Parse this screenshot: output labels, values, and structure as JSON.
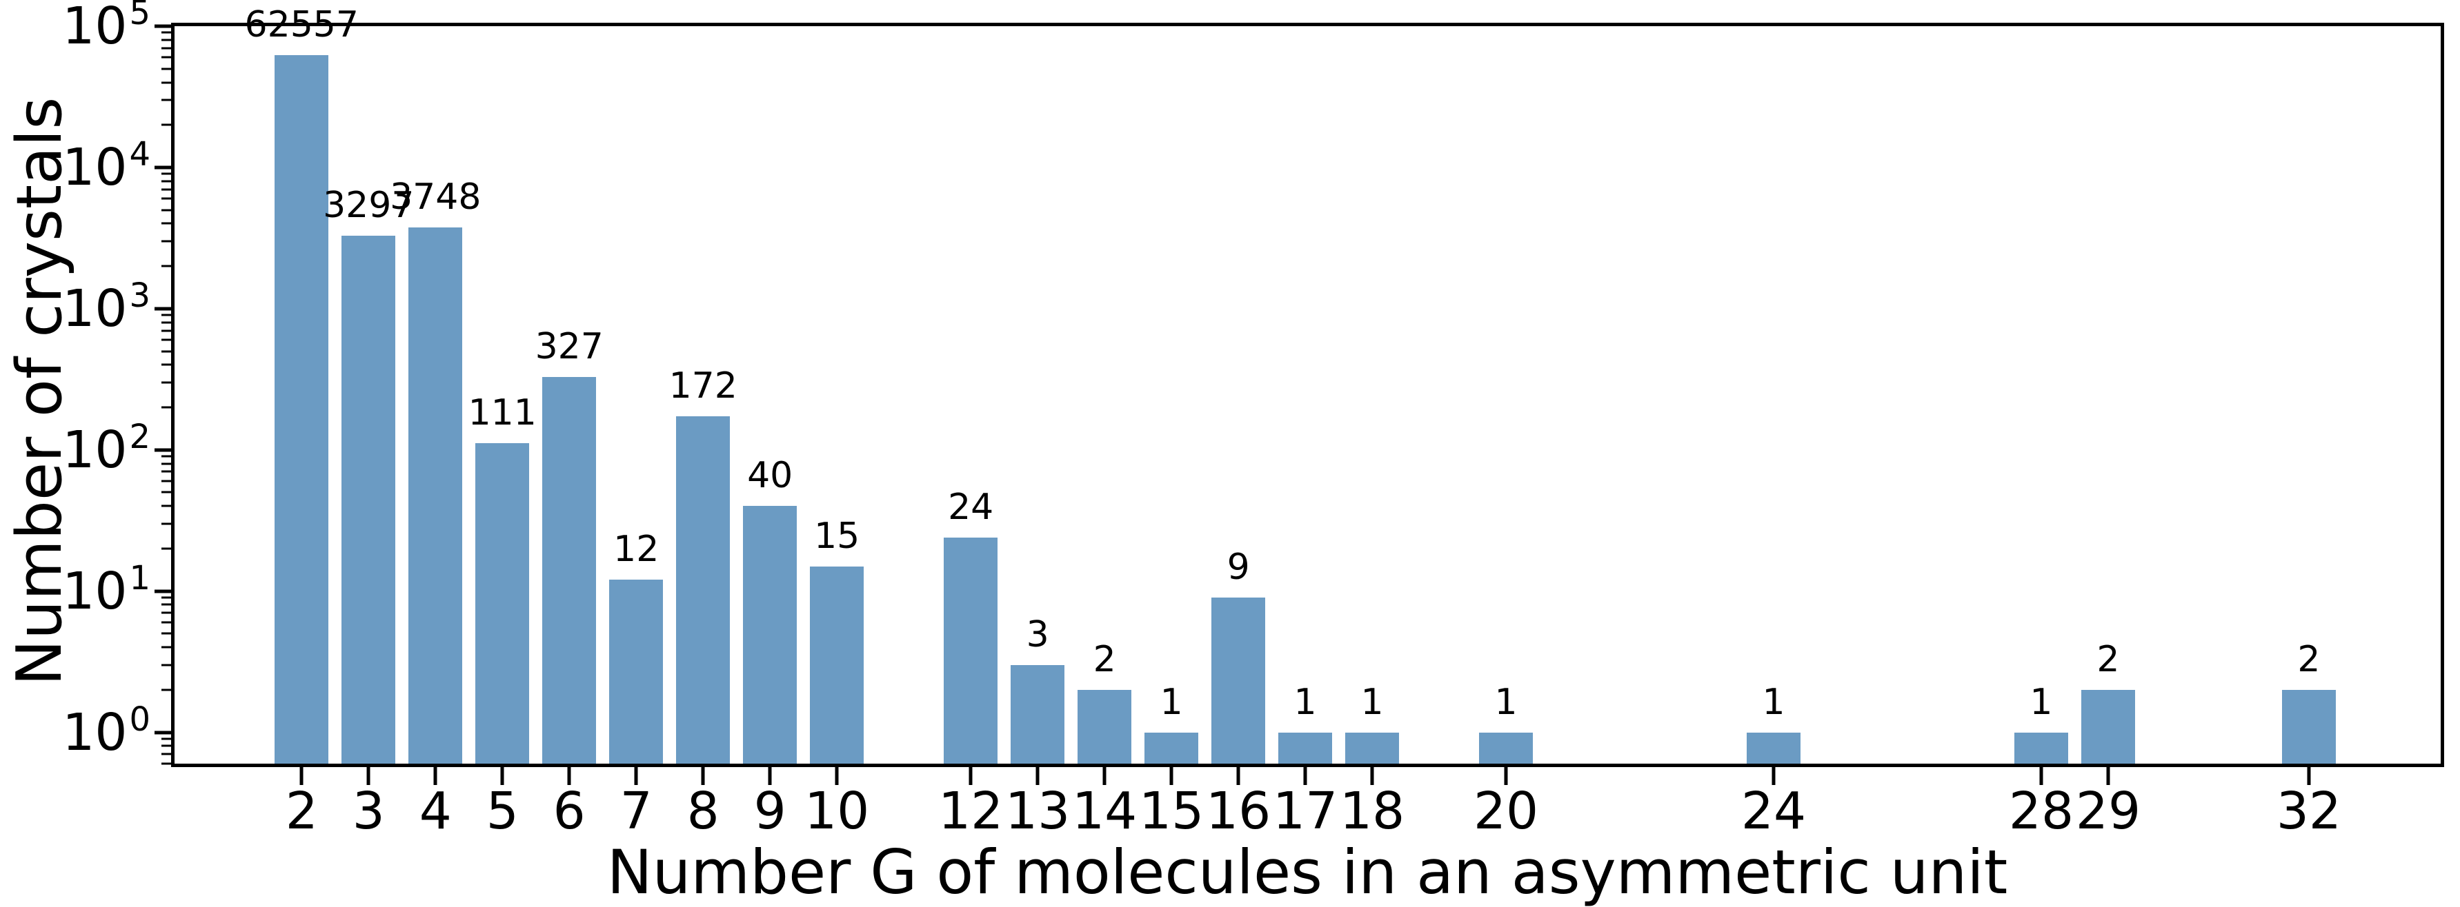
{
  "chart_data": {
    "type": "bar",
    "title": "",
    "xlabel": "Number G of molecules in an asymmetric unit",
    "ylabel": "Number of crystals",
    "x": [
      2,
      3,
      4,
      5,
      6,
      7,
      8,
      9,
      10,
      12,
      13,
      14,
      15,
      16,
      17,
      18,
      20,
      24,
      28,
      29,
      32
    ],
    "values": [
      62557,
      3297,
      3748,
      111,
      327,
      12,
      172,
      40,
      15,
      24,
      3,
      2,
      1,
      9,
      1,
      1,
      1,
      1,
      1,
      2,
      2
    ],
    "bar_value_labels": [
      "62557",
      "3297",
      "3748",
      "111",
      "327",
      "12",
      "172",
      "40",
      "15",
      "24",
      "3",
      "2",
      "1",
      "9",
      "1",
      "1",
      "1",
      "1",
      "1",
      "2",
      "2"
    ],
    "x_tick_labels": [
      "2",
      "3",
      "4",
      "5",
      "6",
      "7",
      "8",
      "9",
      "10",
      "12",
      "13",
      "14",
      "15",
      "16",
      "17",
      "18",
      "20",
      "24",
      "28",
      "29",
      "32"
    ],
    "y_scale": "log",
    "y_tick_exponents": [
      0,
      1,
      2,
      3,
      4,
      5
    ],
    "y_tick_base": "10",
    "xlim": [
      0.1,
      33.97
    ],
    "ylim": [
      0.6,
      100000
    ],
    "bar_width_units": 0.8,
    "bar_color": "#6b9bc3",
    "axis_color": "#000000",
    "grid": false,
    "legend": null
  }
}
